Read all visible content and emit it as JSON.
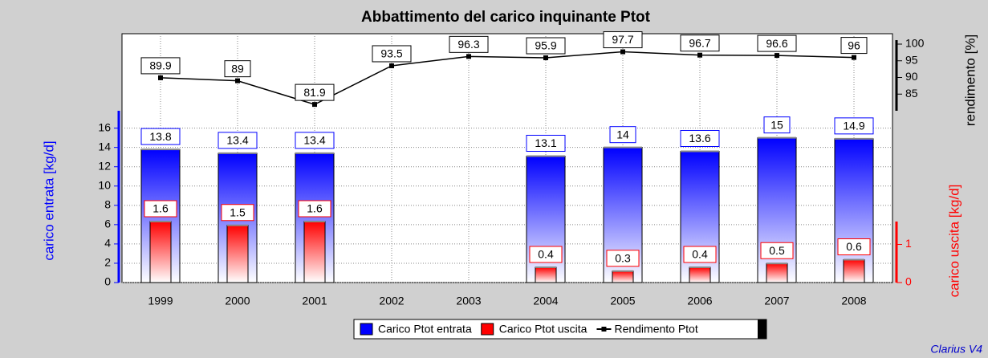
{
  "chart_data": {
    "type": "bar",
    "title": "Abbattimento del carico inquinante Ptot",
    "categories": [
      "1999",
      "2000",
      "2001",
      "2002",
      "2003",
      "2004",
      "2005",
      "2006",
      "2007",
      "2008"
    ],
    "series": [
      {
        "name": "Carico Ptot entrata",
        "color": "#0000ff",
        "axis": "y",
        "values": [
          13.8,
          13.4,
          13.4,
          null,
          null,
          13.1,
          14,
          13.6,
          15,
          14.9
        ]
      },
      {
        "name": "Carico Ptot uscita",
        "color": "#ff0000",
        "axis": "y3",
        "values": [
          1.6,
          1.5,
          1.6,
          null,
          null,
          0.4,
          0.3,
          0.4,
          0.5,
          0.6
        ]
      },
      {
        "name": "Rendimento Ptot",
        "color": "#000000",
        "axis": "y2",
        "type": "line",
        "values": [
          89.9,
          89,
          81.9,
          93.5,
          96.3,
          95.9,
          97.7,
          96.7,
          96.6,
          96
        ]
      }
    ],
    "ylabel": "carico entrata [kg/d]",
    "ylim": [
      0,
      17.8
    ],
    "yticks": [
      0,
      2,
      4,
      6,
      8,
      10,
      12,
      14,
      16
    ],
    "y2label": "rendimento [%]",
    "y2lim": [
      80,
      101.2
    ],
    "y2ticks": [
      85,
      90,
      95,
      100
    ],
    "y3label": "carico uscita [kg/d]",
    "y3lim": [
      0,
      1.6
    ],
    "y3ticks": [
      0,
      1
    ],
    "grid": true,
    "legend": "bottom",
    "footer": "Clarius V4"
  }
}
